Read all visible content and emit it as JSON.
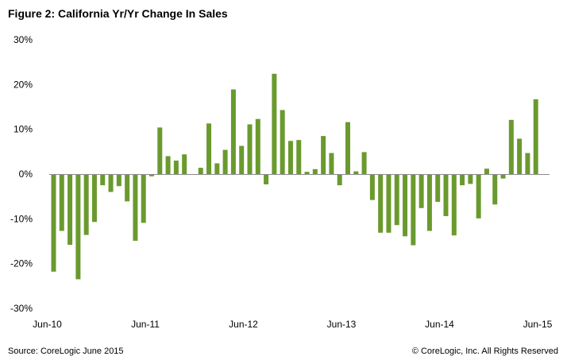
{
  "chart_data": {
    "type": "bar",
    "title": "Figure 2: California Yr/Yr Change In Sales",
    "xlabel": "",
    "ylabel": "",
    "ylim": [
      -30,
      30
    ],
    "yticks": [
      30,
      20,
      10,
      0,
      -10,
      -20,
      -30
    ],
    "ytick_labels": [
      "30%",
      "20%",
      "10%",
      "0%",
      "-10%",
      "-20%",
      "-30%"
    ],
    "xtick_labels": [
      "Jun-10",
      "Jun-11",
      "Jun-12",
      "Jun-13",
      "Jun-14",
      "Jun-15"
    ],
    "xtick_indices": [
      0,
      12,
      24,
      36,
      48,
      60
    ],
    "bar_color": "#6a9a2e",
    "categories": [
      "Jun-10",
      "Jul-10",
      "Aug-10",
      "Sep-10",
      "Oct-10",
      "Nov-10",
      "Dec-10",
      "Jan-11",
      "Feb-11",
      "Mar-11",
      "Apr-11",
      "May-11",
      "Jun-11",
      "Jul-11",
      "Aug-11",
      "Sep-11",
      "Oct-11",
      "Nov-11",
      "Dec-11",
      "Jan-12",
      "Feb-12",
      "Mar-12",
      "Apr-12",
      "May-12",
      "Jun-12",
      "Jul-12",
      "Aug-12",
      "Sep-12",
      "Oct-12",
      "Nov-12",
      "Dec-12",
      "Jan-13",
      "Feb-13",
      "Mar-13",
      "Apr-13",
      "May-13",
      "Jun-13",
      "Jul-13",
      "Aug-13",
      "Sep-13",
      "Oct-13",
      "Nov-13",
      "Dec-13",
      "Jan-14",
      "Feb-14",
      "Mar-14",
      "Apr-14",
      "May-14",
      "Jun-14",
      "Jul-14",
      "Aug-14",
      "Sep-14",
      "Oct-14",
      "Nov-14",
      "Dec-14",
      "Jan-15",
      "Feb-15",
      "Mar-15",
      "Apr-15",
      "May-15",
      "Jun-15"
    ],
    "values": [
      -21.8,
      -12.7,
      -15.8,
      -23.5,
      -13.6,
      -10.7,
      -2.5,
      -4.0,
      -2.7,
      -6.1,
      -14.9,
      -10.9,
      -0.5,
      10.4,
      4.0,
      3.0,
      4.4,
      0.0,
      1.4,
      11.3,
      2.4,
      5.4,
      18.9,
      6.3,
      11.1,
      12.3,
      -2.3,
      22.4,
      14.3,
      7.4,
      7.6,
      0.5,
      1.1,
      8.5,
      4.7,
      -2.5,
      11.6,
      0.6,
      4.9,
      -5.8,
      -13.1,
      -13.1,
      -11.4,
      -13.9,
      -15.9,
      -7.6,
      -12.7,
      -6.2,
      -9.4,
      -13.7,
      -2.5,
      -2.2,
      -9.9,
      1.2,
      -6.8,
      -1.0,
      12.1,
      7.9,
      4.7,
      16.7,
      null
    ]
  },
  "footer": {
    "source": "Source: CoreLogic June 2015",
    "copyright": "© CoreLogic, Inc. All Rights Reserved"
  }
}
